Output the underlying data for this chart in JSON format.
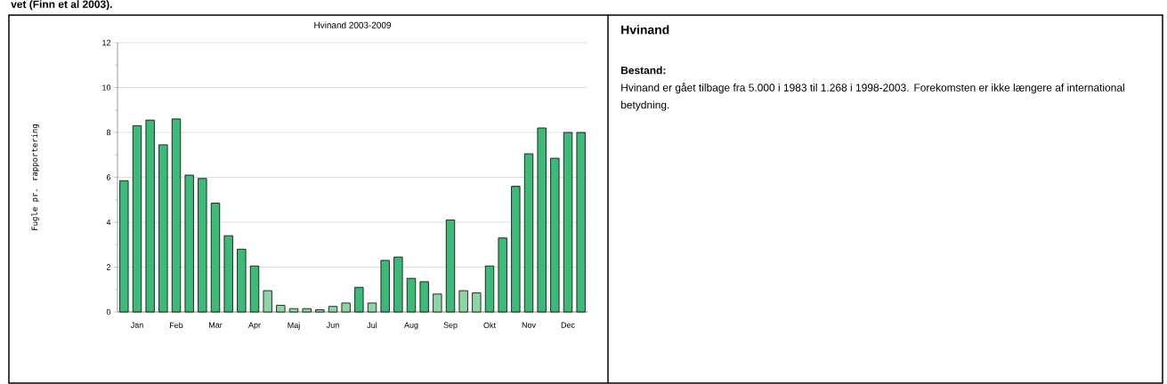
{
  "chart_data": [
    {
      "type": "bar",
      "title": "Hvinand 2003-2009",
      "ylabel": "Fugle pr. rapportering",
      "annotations": [
        "vet (Finn et al 2003)."
      ],
      "categories": [
        null,
        "Jan",
        null,
        null,
        "Feb",
        null,
        null,
        "Mar",
        null,
        null,
        "Apr",
        null,
        null,
        "Maj",
        null,
        null,
        "Jun",
        null,
        null,
        "Jul",
        null,
        null,
        "Aug",
        null,
        null,
        "Sep",
        null,
        null,
        "Okt",
        null,
        null,
        "Nov",
        null,
        null,
        "Dec",
        null
      ],
      "values": [
        5.85,
        8.3,
        8.55,
        7.45,
        8.6,
        6.1,
        5.95,
        4.85,
        3.4,
        2.8,
        2.05,
        0.95,
        0.3,
        0.15,
        0.15,
        0.1,
        0.25,
        0.4,
        1.1,
        0.4,
        2.3,
        2.45,
        1.5,
        1.35,
        0.8,
        4.1,
        0.95,
        0.85,
        2.05,
        3.3,
        5.6,
        7.05,
        8.2,
        6.85,
        8.0,
        8.0
      ],
      "colors": [
        "#3dba78",
        "#3dba78",
        "#3dba78",
        "#3dba78",
        "#3dba78",
        "#3dba78",
        "#3dba78",
        "#3dba78",
        "#3dba78",
        "#3dba78",
        "#3dba78",
        "#8dd5a5",
        "#8dd5a5",
        "#8dd5a5",
        "#8dd5a5",
        "#8dd5a5",
        "#8dd5a5",
        "#8dd5a5",
        "#3dba78",
        "#8dd5a5",
        "#3dba78",
        "#3dba78",
        "#3dba78",
        "#3dba78",
        "#8dd5a5",
        "#3dba78",
        "#8dd5a5",
        "#8dd5a5",
        "#3dba78",
        "#3dba78",
        "#3dba78",
        "#3dba78",
        "#3dba78",
        "#3dba78",
        "#3dba78",
        "#3dba78"
      ],
      "ylim": [
        0,
        12
      ],
      "yticks": [
        0,
        2,
        4,
        6,
        8,
        10,
        12
      ],
      "grid": "y"
    },
    {
      "type": "other",
      "title": "Hvinand",
      "subtitle": "Bestand:",
      "annotations": [
        "Hvinand er gået tilbage fra 5.000 i 1983 til 1.268 i 1998-2003. Forekomsten er ikke længere af international betydning."
      ]
    }
  ]
}
